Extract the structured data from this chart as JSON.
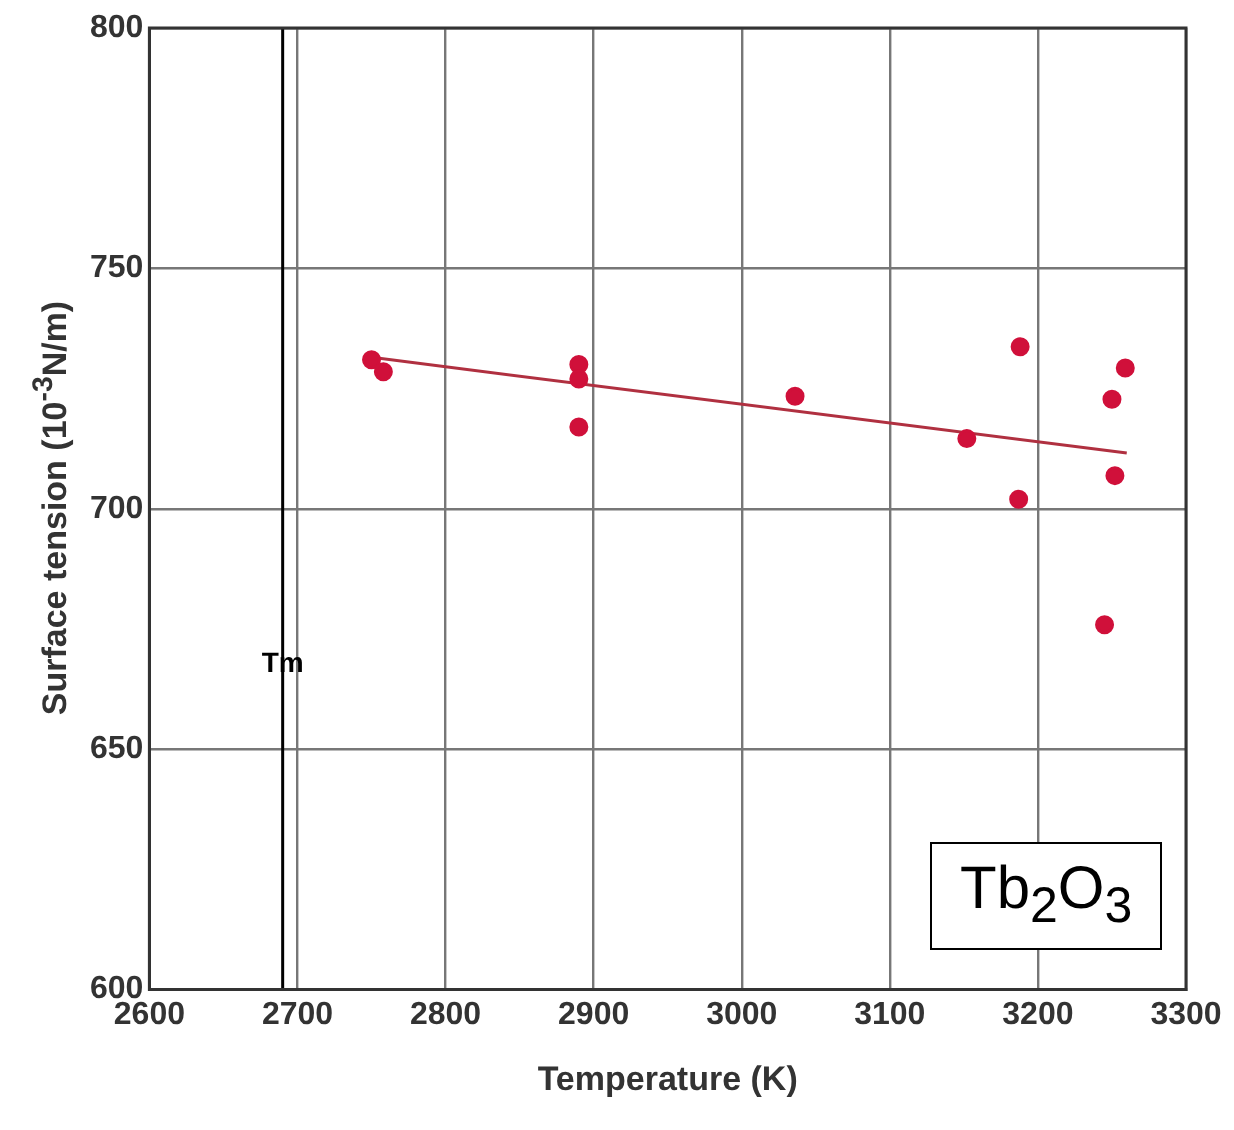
{
  "chart_data": {
    "type": "scatter",
    "xlabel": "Temperature (K)",
    "ylabel": "Surface tension (10$^{-3}$N/m)",
    "xlim": [
      2600,
      3300
    ],
    "xticks": [
      2600,
      2700,
      2800,
      2900,
      3000,
      3100,
      3200,
      3300
    ],
    "ylim": [
      600,
      800
    ],
    "yticks": [
      600,
      650,
      700,
      750,
      800
    ],
    "grid": true,
    "marker": "circle",
    "series": [
      {
        "color": "#d0103a",
        "x": [
          2750,
          2758,
          2890,
          2890,
          2890,
          3036,
          3152,
          3187,
          3188,
          3245,
          3250,
          3252,
          3259
        ],
        "values": [
          731,
          728.5,
          730,
          727,
          717,
          723.4,
          714.6,
          702,
          733.7,
          675.9,
          722.8,
          706.9,
          729.3
        ]
      },
      {
        "type": "line",
        "color": "#b03040",
        "x": [
          2750,
          3260
        ],
        "values": [
          731.5,
          711.6
        ],
        "marker": "none"
      }
    ],
    "ref_lines": [
      {
        "axis": "x",
        "value": 2690,
        "label": "Tm",
        "color": "#000000"
      }
    ],
    "annotations": [
      "Tb$_{2}$O$_{3}$"
    ]
  }
}
